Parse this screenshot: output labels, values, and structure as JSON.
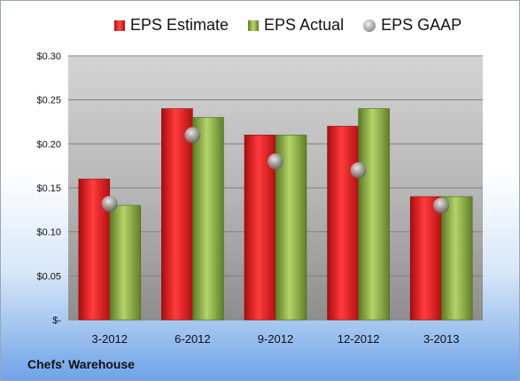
{
  "legend": {
    "estimate": "EPS Estimate",
    "actual": "EPS Actual",
    "gaap": "EPS GAAP"
  },
  "company": "Chefs' Warehouse",
  "colors": {
    "estimate": "#d8262a",
    "actual": "#8fb04a",
    "gaap": "#a0a0a0"
  },
  "chart_data": {
    "type": "bar",
    "categories": [
      "3-2012",
      "6-2012",
      "9-2012",
      "12-2012",
      "3-2013"
    ],
    "series": [
      {
        "name": "EPS Estimate",
        "values": [
          0.16,
          0.24,
          0.21,
          0.22,
          0.14
        ]
      },
      {
        "name": "EPS Actual",
        "values": [
          0.13,
          0.23,
          0.21,
          0.24,
          0.14
        ]
      },
      {
        "name": "EPS GAAP",
        "type": "scatter",
        "values": [
          0.132,
          0.21,
          0.18,
          0.17,
          0.13
        ]
      }
    ],
    "ylim": [
      0,
      0.3
    ],
    "yticks": [
      0,
      0.05,
      0.1,
      0.15,
      0.2,
      0.25,
      0.3
    ],
    "ytick_labels": [
      "$-",
      "$0.05",
      "$0.10",
      "$0.15",
      "$0.20",
      "$0.25",
      "$0.30"
    ],
    "grid": true,
    "legend_position": "top"
  }
}
